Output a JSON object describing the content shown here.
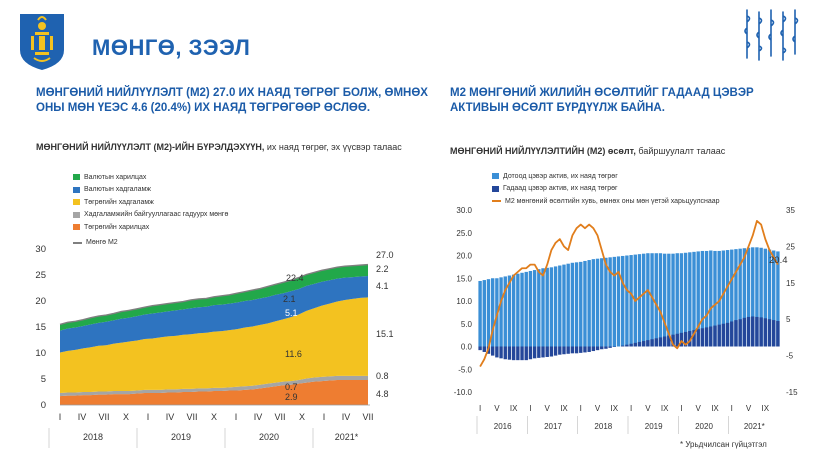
{
  "header": {
    "title": "МӨНГӨ, ЗЭЭЛ"
  },
  "left": {
    "headline": "МӨНГӨНИЙ НИЙЛҮҮЛЭЛТ (M2) 27.0 ИХ НАЯД ТӨГРӨГ БОЛЖ, ӨМНӨХ ОНЫ МӨН ҮЕЭС 4.6 (20.4%) ИХ НАЯД ТӨГРӨГӨӨР ӨСЛӨӨ.",
    "chart_title_bold": "МӨНГӨНИЙ НИЙЛҮҮЛЭЛТ (M2)-ИЙН БҮРЭЛДЭХҮҮН,",
    "chart_title_rest": " их наяд төгрөг, эх үүсвэр талаас"
  },
  "right": {
    "headline": "M2 МӨНГӨНИЙ ЖИЛИЙН ӨСӨЛТИЙГ ГАДААД ЦЭВЭР АКТИВЫН ӨСӨЛТ БҮРДҮҮЛЖ БАЙНА.",
    "chart_title_bold": "МӨНГӨНИЙ НИЙЛҮҮЛЭЛТИЙН (M2) өсөлт,",
    "chart_title_rest": " байршуулалт талаас",
    "footnote": "* Урьдчилсан гүйцэтгэл"
  },
  "chart_data": [
    {
      "type": "area",
      "stacked": true,
      "ylim": [
        0,
        30
      ],
      "yticks": [
        "0",
        "5",
        "10",
        "15",
        "20",
        "25",
        "30"
      ],
      "x_period_labels": [
        "I",
        "IV",
        "VII",
        "X",
        "I",
        "IV",
        "VII",
        "X",
        "I",
        "IV",
        "VII",
        "X",
        "I",
        "IV",
        "VII"
      ],
      "x_year_labels": [
        "2018",
        "2019",
        "2020",
        "2021*"
      ],
      "series": [
        {
          "name": "Төгрөгийн харилцах",
          "color": "#ee7d31",
          "values": [
            1.7,
            1.8,
            1.8,
            1.9,
            1.9,
            2.0,
            2.0,
            2.1,
            2.1,
            2.1,
            2.2,
            2.3,
            2.3,
            2.3,
            2.4,
            2.4,
            2.5,
            2.5,
            2.6,
            2.6,
            2.7,
            2.7,
            2.8,
            2.8,
            2.9,
            3.0,
            3.2,
            3.4,
            3.6,
            3.8,
            3.9,
            4.1,
            4.3,
            4.5,
            4.6,
            4.7,
            4.8,
            4.8,
            4.8,
            4.8,
            4.8
          ]
        },
        {
          "name": "Хадгаламжийн байгууллагаас гадуурх мөнгө",
          "color": "#a5a5a5",
          "values": [
            0.6,
            0.6,
            0.6,
            0.6,
            0.6,
            0.6,
            0.6,
            0.6,
            0.6,
            0.6,
            0.6,
            0.6,
            0.6,
            0.6,
            0.6,
            0.6,
            0.6,
            0.6,
            0.6,
            0.6,
            0.6,
            0.6,
            0.6,
            0.7,
            0.7,
            0.7,
            0.7,
            0.7,
            0.7,
            0.7,
            0.7,
            0.7,
            0.8,
            0.8,
            0.8,
            0.8,
            0.8,
            0.8,
            0.8,
            0.8,
            0.8
          ]
        },
        {
          "name": "Төгрөгийн хадгаламж",
          "color": "#f3c220",
          "values": [
            7.8,
            8.0,
            8.2,
            8.4,
            8.6,
            8.8,
            8.9,
            9.1,
            9.3,
            9.5,
            9.6,
            9.8,
            9.9,
            10.1,
            10.2,
            10.3,
            10.4,
            10.5,
            10.6,
            10.7,
            10.8,
            10.9,
            11.0,
            11.1,
            11.3,
            11.4,
            11.5,
            11.6,
            11.8,
            12.0,
            12.3,
            12.6,
            13.0,
            13.3,
            13.7,
            14.0,
            14.3,
            14.6,
            14.8,
            15.0,
            15.1
          ]
        },
        {
          "name": "Валютын хадгаламж",
          "color": "#2e74c0",
          "values": [
            4.2,
            4.3,
            4.3,
            4.3,
            4.4,
            4.4,
            4.5,
            4.5,
            4.6,
            4.6,
            4.7,
            4.7,
            4.8,
            4.8,
            4.8,
            4.9,
            4.9,
            5.0,
            5.0,
            5.0,
            5.1,
            5.1,
            5.1,
            5.1,
            5.1,
            5.1,
            5.1,
            5.1,
            5.1,
            5.0,
            5.0,
            4.9,
            4.8,
            4.7,
            4.6,
            4.5,
            4.4,
            4.3,
            4.2,
            4.1,
            4.1
          ]
        },
        {
          "name": "Валютын харилцах",
          "color": "#22a84a",
          "values": [
            1.2,
            1.2,
            1.2,
            1.2,
            1.3,
            1.3,
            1.3,
            1.3,
            1.4,
            1.4,
            1.4,
            1.4,
            1.5,
            1.5,
            1.5,
            1.5,
            1.5,
            1.6,
            1.6,
            1.6,
            1.6,
            1.7,
            1.7,
            1.8,
            1.8,
            1.9,
            1.9,
            2.0,
            2.0,
            2.1,
            2.1,
            2.2,
            2.2,
            2.2,
            2.2,
            2.2,
            2.2,
            2.2,
            2.2,
            2.2,
            2.2
          ]
        }
      ],
      "total_series": {
        "name": "Мөнгө M2",
        "color": "#7f7f7f"
      },
      "data_labels": [
        {
          "text": "22.4",
          "color": "#333333"
        },
        {
          "text": "2.1",
          "color": "#333333"
        },
        {
          "text": "5.1",
          "color": "#ffffff"
        },
        {
          "text": "11.6",
          "color": "#333333"
        },
        {
          "text": "0.7",
          "color": "#333333"
        },
        {
          "text": "2.9",
          "color": "#333333"
        },
        {
          "text": "27.0",
          "color": "#333333"
        },
        {
          "text": "2.2",
          "color": "#333333"
        },
        {
          "text": "4.1",
          "color": "#333333"
        },
        {
          "text": "15.1",
          "color": "#333333"
        },
        {
          "text": "0.8",
          "color": "#333333"
        },
        {
          "text": "4.8",
          "color": "#333333"
        }
      ]
    },
    {
      "type": "bar+line",
      "ylim_left": [
        -10,
        30
      ],
      "ylim_right": [
        -15,
        35
      ],
      "yticks_left": [
        "-10.0",
        "-5.0",
        "0.0",
        "5.0",
        "10.0",
        "15.0",
        "20.0",
        "25.0",
        "30.0"
      ],
      "yticks_right": [
        "-15",
        "-5",
        "5",
        "15",
        "25",
        "35"
      ],
      "x_period_labels": [
        "I",
        "V",
        "IX",
        "I",
        "V",
        "IX",
        "I",
        "V",
        "IX",
        "I",
        "V",
        "IX",
        "I",
        "V",
        "IX",
        "I",
        "V",
        "IX"
      ],
      "x_year_labels": [
        "2016",
        "2017",
        "2018",
        "2019",
        "2020",
        "2021*"
      ],
      "series": [
        {
          "name": "Дотоод цэвэр актив, их наяд төгрөг",
          "color": "#3b8fd6",
          "values": [
            14.4,
            14.6,
            14.8,
            15.0,
            15.0,
            15.2,
            15.4,
            15.6,
            15.8,
            16.0,
            16.2,
            16.4,
            16.6,
            16.8,
            17.0,
            17.2,
            17.3,
            17.4,
            17.6,
            17.8,
            18.0,
            18.2,
            18.4,
            18.5,
            18.6,
            18.8,
            19.0,
            19.2,
            19.3,
            19.4,
            19.5,
            19.6,
            19.7,
            19.8,
            19.9,
            20.0,
            20.1,
            20.2,
            20.3,
            20.4,
            20.5,
            20.5,
            20.5,
            20.5,
            20.4,
            20.4,
            20.4,
            20.5,
            20.5,
            20.6,
            20.7,
            20.8,
            20.9,
            21.0,
            21.0,
            21.1,
            21.0,
            21.0,
            21.1,
            21.2,
            21.3,
            21.4,
            21.5,
            21.6,
            21.7,
            21.8,
            21.8,
            21.7,
            21.5,
            21.3,
            21.1,
            20.9
          ]
        },
        {
          "name": "Гадаад цэвэр актив, их наяд төгрөг",
          "color": "#24479a",
          "values": [
            -0.8,
            -1.2,
            -1.6,
            -2.0,
            -2.4,
            -2.6,
            -2.8,
            -2.9,
            -3.0,
            -3.0,
            -3.0,
            -3.0,
            -2.8,
            -2.6,
            -2.5,
            -2.4,
            -2.3,
            -2.2,
            -2.0,
            -1.8,
            -1.7,
            -1.6,
            -1.5,
            -1.5,
            -1.4,
            -1.3,
            -1.2,
            -1.0,
            -0.8,
            -0.6,
            -0.5,
            -0.3,
            -0.1,
            0.0,
            0.2,
            0.4,
            0.6,
            0.8,
            1.0,
            1.2,
            1.4,
            1.6,
            1.8,
            2.0,
            2.2,
            2.4,
            2.6,
            2.8,
            3.0,
            3.2,
            3.4,
            3.6,
            3.8,
            4.0,
            4.2,
            4.4,
            4.6,
            4.8,
            5.0,
            5.2,
            5.5,
            5.8,
            6.0,
            6.3,
            6.5,
            6.6,
            6.5,
            6.4,
            6.2,
            6.0,
            5.8,
            5.6
          ]
        },
        {
          "name": "M2 мөнгөний өсөлтийн хувь, өмнөх оны мөн үетэй харьцуулснаар",
          "color": "#e17e1c",
          "axis": "right",
          "values": [
            -8,
            -6,
            -3,
            2,
            6,
            10,
            13,
            15,
            17,
            18,
            19,
            19,
            20,
            20,
            18,
            17,
            20,
            24,
            26,
            27,
            25,
            24,
            28,
            30,
            31,
            30,
            31,
            30,
            28,
            24,
            20,
            18,
            17,
            18,
            15,
            13,
            12,
            10,
            11,
            12,
            13,
            11,
            9,
            7,
            4,
            1,
            -2,
            -3,
            -1,
            -2,
            -1,
            1,
            3,
            5,
            6,
            8,
            9,
            10,
            12,
            14,
            16,
            18,
            20,
            22,
            25,
            28,
            32,
            31,
            27,
            24,
            22,
            20
          ]
        }
      ],
      "data_labels": [
        {
          "text": "20.4"
        }
      ]
    }
  ]
}
